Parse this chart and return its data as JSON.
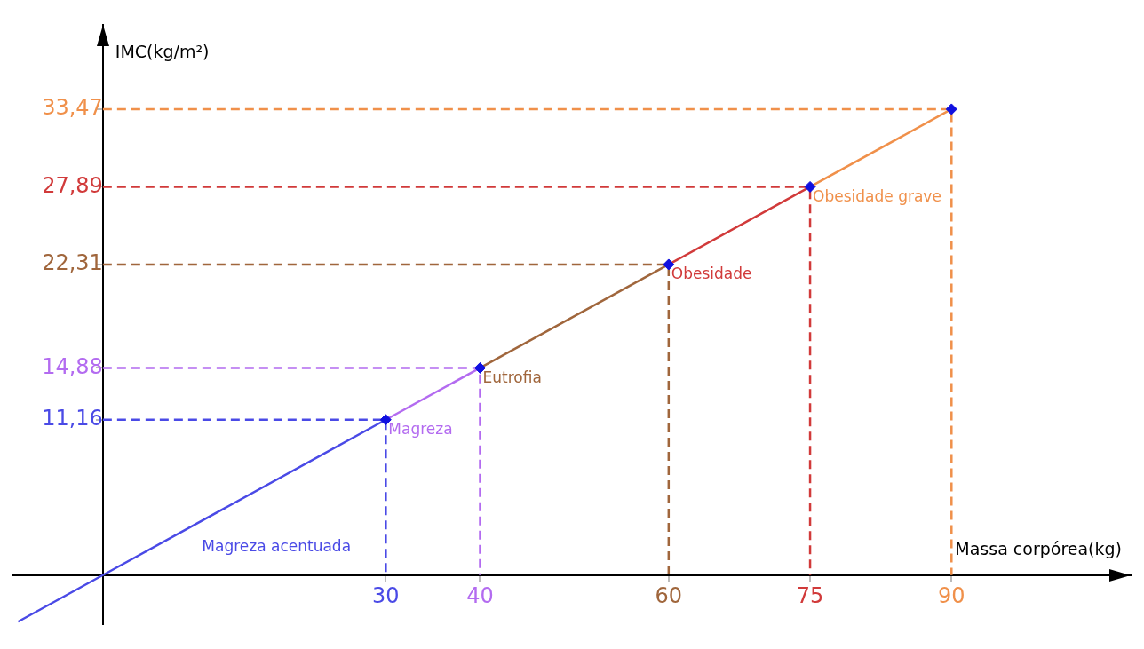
{
  "chart_data": {
    "type": "line",
    "xlabel": "Massa corpórea(kg)",
    "ylabel": "IMC(kg/m²)",
    "xlim": [
      -9.5,
      109
    ],
    "ylim": [
      -3.5,
      39.5
    ],
    "xticks": [
      30,
      40,
      60,
      75,
      90
    ],
    "yticks": [
      {
        "value": 11.16,
        "label": "11,16"
      },
      {
        "value": 14.88,
        "label": "14,88"
      },
      {
        "value": 22.31,
        "label": "22,31"
      },
      {
        "value": 27.89,
        "label": "27,89"
      },
      {
        "value": 33.47,
        "label": "33,47"
      }
    ],
    "grid": false,
    "legend": false,
    "series": [
      {
        "line_style": "dashed",
        "color": "#4a4ae6",
        "x": [
          0,
          30,
          30
        ],
        "values": [
          11.16,
          11.16,
          0
        ]
      },
      {
        "line_style": "dashed",
        "color": "#b36bf0",
        "x": [
          0,
          40,
          40
        ],
        "values": [
          14.88,
          14.88,
          0
        ]
      },
      {
        "line_style": "dashed",
        "color": "#a0663c",
        "x": [
          0,
          60,
          60
        ],
        "values": [
          22.31,
          22.31,
          0
        ]
      },
      {
        "line_style": "dashed",
        "color": "#d13a3a",
        "x": [
          0,
          75,
          75
        ],
        "values": [
          27.89,
          27.89,
          0
        ]
      },
      {
        "line_style": "dashed",
        "color": "#f0904a",
        "x": [
          0,
          90,
          90
        ],
        "values": [
          33.47,
          33.47,
          0
        ]
      },
      {
        "line_style": "solid",
        "name": "Magreza acentuada",
        "color": "#4a4ae6",
        "x": [
          -9,
          0,
          30
        ],
        "values": [
          -3.35,
          0,
          11.16
        ]
      },
      {
        "line_style": "solid",
        "name": "Magreza",
        "color": "#b36bf0",
        "x": [
          30,
          40
        ],
        "values": [
          11.16,
          14.88
        ]
      },
      {
        "line_style": "solid",
        "name": "Eutrofia",
        "color": "#a0663c",
        "x": [
          40,
          60
        ],
        "values": [
          14.88,
          22.31
        ]
      },
      {
        "line_style": "solid",
        "name": "Obesidade",
        "color": "#d13a3a",
        "x": [
          60,
          75
        ],
        "values": [
          22.31,
          27.89
        ]
      },
      {
        "line_style": "solid",
        "name": "Obesidade grave",
        "color": "#f0904a",
        "x": [
          75,
          90
        ],
        "values": [
          27.89,
          33.47
        ]
      },
      {
        "type": "scatter",
        "marker": "diamond",
        "color": "#1010e0",
        "x": [
          30,
          40,
          60,
          75,
          90
        ],
        "values": [
          11.16,
          14.88,
          22.31,
          27.89,
          33.47
        ]
      }
    ]
  }
}
